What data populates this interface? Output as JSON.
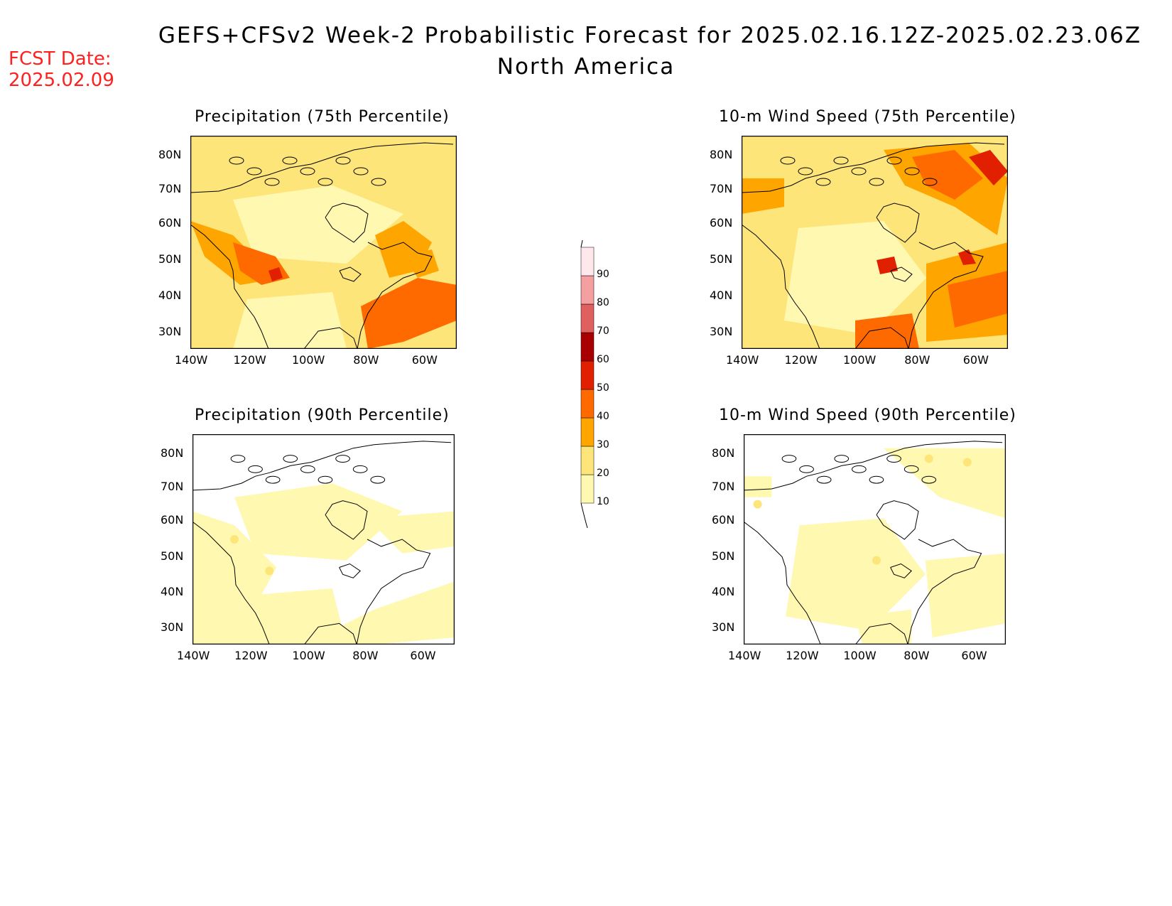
{
  "title": {
    "line1": "GEFS+CFSv2 Week-2 Probabilistic Forecast for 2025.02.16.12Z-2025.02.23.06Z",
    "line2": "North America"
  },
  "fcst_date": {
    "label": "FCST Date:",
    "value": "2025.02.09"
  },
  "panels": [
    {
      "id": "precip75",
      "title": "Precipitation (75th Percentile)"
    },
    {
      "id": "wind75",
      "title": "10-m Wind Speed (75th Percentile)"
    },
    {
      "id": "precip90",
      "title": "Precipitation (90th Percentile)"
    },
    {
      "id": "wind90",
      "title": "10-m Wind Speed (90th Percentile)"
    }
  ],
  "axes": {
    "lat_ticks": [
      "80N",
      "70N",
      "60N",
      "50N",
      "40N",
      "30N"
    ],
    "lon_ticks": [
      "140W",
      "120W",
      "100W",
      "80W",
      "60W"
    ]
  },
  "colorbar": {
    "levels": [
      "10",
      "20",
      "30",
      "40",
      "50",
      "60",
      "70",
      "80",
      "90"
    ],
    "colors": [
      "#fff8b0",
      "#fde57a",
      "#ffa500",
      "#ff6a00",
      "#e02000",
      "#a80000",
      "#e06060",
      "#f4a0a0",
      "#ffe8ec"
    ]
  }
}
